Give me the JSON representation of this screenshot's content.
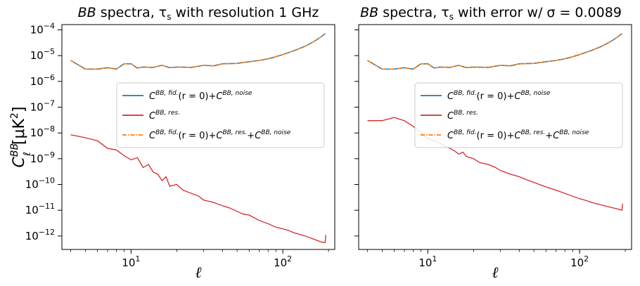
{
  "chart_data": [
    {
      "type": "line",
      "title": "BB spectra, τ_s with resolution 1 GHz",
      "title_parts": {
        "italic": "BB",
        "rest": " spectra, τ",
        "sub": "s",
        "tail": " with resolution 1 GHz"
      },
      "xlabel": "ℓ",
      "ylabel": "C_ℓ^BB [μK²]",
      "xscale": "log",
      "yscale": "log",
      "xlim": [
        3.5,
        220
      ],
      "ylim": [
        3e-13,
        0.00016
      ],
      "x_ticks": [
        {
          "value": 10,
          "base": "10",
          "exp": "1"
        },
        {
          "value": 100,
          "base": "10",
          "exp": "2"
        }
      ],
      "y_ticks": [
        {
          "value": 0.0001,
          "base": "10",
          "exp": "−4"
        },
        {
          "value": 1e-05,
          "base": "10",
          "exp": "−5"
        },
        {
          "value": 1e-06,
          "base": "10",
          "exp": "−6"
        },
        {
          "value": 1e-07,
          "base": "10",
          "exp": "−7"
        },
        {
          "value": 1e-08,
          "base": "10",
          "exp": "−8"
        },
        {
          "value": 1e-09,
          "base": "10",
          "exp": "−9"
        },
        {
          "value": 1e-10,
          "base": "10",
          "exp": "−10"
        },
        {
          "value": 1e-11,
          "base": "10",
          "exp": "−11"
        },
        {
          "value": 1e-12,
          "base": "10",
          "exp": "−12"
        }
      ],
      "legend_position": "center-right",
      "series": [
        {
          "name": "C_ℓ^{BB, fid.}(r=0)+C_ℓ^{BB, noise}",
          "color": "#1f77b4",
          "style": "solid",
          "x": [
            4,
            5,
            6,
            7,
            8,
            9,
            10,
            11,
            12,
            14,
            16,
            18,
            20,
            25,
            30,
            35,
            40,
            50,
            60,
            70,
            80,
            90,
            100,
            120,
            140,
            160,
            180,
            190
          ],
          "y": [
            6.5e-06,
            3e-06,
            3e-06,
            3.4e-06,
            3e-06,
            4.8e-06,
            4.8e-06,
            3.3e-06,
            3.6e-06,
            3.5e-06,
            4.2e-06,
            3.4e-06,
            3.6e-06,
            3.5e-06,
            4.2e-06,
            4e-06,
            4.8e-06,
            5e-06,
            5.8e-06,
            6.5e-06,
            7.5e-06,
            9e-06,
            1.1e-05,
            1.6e-05,
            2.3e-05,
            3.5e-05,
            5.5e-05,
            7.2e-05
          ]
        },
        {
          "name": "C_ℓ^{BB, res.}",
          "color": "#d62728",
          "style": "solid",
          "x": [
            4,
            5,
            6,
            7,
            8,
            9,
            10,
            11,
            12,
            13,
            14,
            15,
            16,
            17,
            18,
            20,
            22,
            25,
            28,
            30,
            35,
            40,
            45,
            50,
            55,
            60,
            70,
            80,
            90,
            100,
            110,
            120,
            140,
            160,
            180,
            190,
            192
          ],
          "y": [
            8.5e-09,
            6.5e-09,
            5e-09,
            2.5e-09,
            2.2e-09,
            1.3e-09,
            9e-10,
            1.1e-09,
            4.5e-10,
            6e-10,
            3e-10,
            2.5e-10,
            1.4e-10,
            2e-10,
            8.5e-11,
            1e-10,
            6e-11,
            4.5e-11,
            3.5e-11,
            2.5e-11,
            2e-11,
            1.5e-11,
            1.2e-11,
            9e-12,
            7e-12,
            6.5e-12,
            4e-12,
            3e-12,
            2.2e-12,
            1.9e-12,
            1.6e-12,
            1.3e-12,
            1e-12,
            7.5e-13,
            5.8e-13,
            5.5e-13,
            1.1e-12
          ]
        },
        {
          "name": "C_ℓ^{BB, fid.}(r=0)+C_ℓ^{BB, res.}+C_ℓ^{BB, noise}",
          "color": "#ff7f0e",
          "style": "dashdot",
          "x": [
            4,
            5,
            6,
            7,
            8,
            9,
            10,
            11,
            12,
            14,
            16,
            18,
            20,
            25,
            30,
            35,
            40,
            50,
            60,
            70,
            80,
            90,
            100,
            120,
            140,
            160,
            180,
            190
          ],
          "y": [
            6.5e-06,
            3e-06,
            3e-06,
            3.4e-06,
            3e-06,
            4.8e-06,
            4.8e-06,
            3.3e-06,
            3.6e-06,
            3.5e-06,
            4.2e-06,
            3.4e-06,
            3.6e-06,
            3.5e-06,
            4.2e-06,
            4e-06,
            4.8e-06,
            5e-06,
            5.8e-06,
            6.5e-06,
            7.5e-06,
            9e-06,
            1.1e-05,
            1.6e-05,
            2.3e-05,
            3.5e-05,
            5.5e-05,
            7.2e-05
          ]
        }
      ]
    },
    {
      "type": "line",
      "title": "BB spectra, τ_s with error w/ σ = 0.0089",
      "title_parts": {
        "italic": "BB",
        "rest": " spectra, τ",
        "sub": "s",
        "tail": " with error w/ σ = 0.0089"
      },
      "xlabel": "ℓ",
      "ylabel": "",
      "xscale": "log",
      "yscale": "log",
      "xlim": [
        3.5,
        220
      ],
      "ylim": [
        3e-13,
        0.00016
      ],
      "x_ticks": [
        {
          "value": 10,
          "base": "10",
          "exp": "1"
        },
        {
          "value": 100,
          "base": "10",
          "exp": "2"
        }
      ],
      "y_ticks": [],
      "legend_position": "center-right",
      "series": [
        {
          "name": "C_ℓ^{BB, fid.}(r=0)+C_ℓ^{BB, noise}",
          "color": "#1f77b4",
          "style": "solid",
          "x": [
            4,
            5,
            6,
            7,
            8,
            9,
            10,
            11,
            12,
            14,
            16,
            18,
            20,
            25,
            30,
            35,
            40,
            50,
            60,
            70,
            80,
            90,
            100,
            120,
            140,
            160,
            180,
            190
          ],
          "y": [
            6.5e-06,
            3e-06,
            3e-06,
            3.4e-06,
            3e-06,
            4.8e-06,
            4.8e-06,
            3.3e-06,
            3.6e-06,
            3.5e-06,
            4.2e-06,
            3.4e-06,
            3.6e-06,
            3.5e-06,
            4.2e-06,
            4e-06,
            4.8e-06,
            5e-06,
            5.8e-06,
            6.5e-06,
            7.5e-06,
            9e-06,
            1.1e-05,
            1.6e-05,
            2.3e-05,
            3.5e-05,
            5.5e-05,
            7.2e-05
          ]
        },
        {
          "name": "C_ℓ^{BB, res.}",
          "color": "#d62728",
          "style": "solid",
          "x": [
            4,
            5,
            6,
            7,
            8,
            9,
            10,
            11,
            12,
            13,
            14,
            15,
            16,
            17,
            18,
            20,
            22,
            25,
            28,
            30,
            35,
            40,
            45,
            50,
            60,
            70,
            80,
            90,
            100,
            110,
            120,
            140,
            160,
            180,
            190,
            192
          ],
          "y": [
            3e-08,
            3e-08,
            4e-08,
            3e-08,
            1.8e-08,
            1e-08,
            6e-09,
            5e-09,
            4e-09,
            3e-09,
            2.5e-09,
            2e-09,
            1.5e-09,
            1.8e-09,
            1.2e-09,
            1e-09,
            7e-10,
            6e-10,
            4.5e-10,
            3.5e-10,
            2.5e-10,
            2e-10,
            1.5e-10,
            1.2e-10,
            8e-11,
            6e-11,
            4.5e-11,
            3.5e-11,
            2.8e-11,
            2.4e-11,
            2e-11,
            1.6e-11,
            1.3e-11,
            1.1e-11,
            1e-11,
            1.8e-11
          ]
        },
        {
          "name": "C_ℓ^{BB, fid.}(r=0)+C_ℓ^{BB, res.}+C_ℓ^{BB, noise}",
          "color": "#ff7f0e",
          "style": "dashdot",
          "x": [
            4,
            5,
            6,
            7,
            8,
            9,
            10,
            11,
            12,
            14,
            16,
            18,
            20,
            25,
            30,
            35,
            40,
            50,
            60,
            70,
            80,
            90,
            100,
            120,
            140,
            160,
            180,
            190
          ],
          "y": [
            6.5e-06,
            3e-06,
            3e-06,
            3.4e-06,
            3e-06,
            4.8e-06,
            4.8e-06,
            3.3e-06,
            3.6e-06,
            3.5e-06,
            4.2e-06,
            3.4e-06,
            3.6e-06,
            3.5e-06,
            4.2e-06,
            4e-06,
            4.8e-06,
            5e-06,
            5.8e-06,
            6.5e-06,
            7.5e-06,
            9e-06,
            1.1e-05,
            1.6e-05,
            2.3e-05,
            3.5e-05,
            5.5e-05,
            7.2e-05
          ]
        }
      ]
    }
  ],
  "legend_labels": {
    "fid_noise": {
      "C": "C",
      "l": "ℓ",
      "sup1": "BB, fid.",
      "mid": "(r = 0)+",
      "sup2": "BB, noise"
    },
    "res": {
      "C": "C",
      "l": "ℓ",
      "sup1": "BB, res."
    },
    "all": {
      "C": "C",
      "l": "ℓ",
      "sup1": "BB, fid.",
      "mid": "(r = 0)+",
      "sup2": "BB, res.",
      "plus": "+",
      "sup3": "BB, noise"
    }
  },
  "ylabel_parts": {
    "C": "C",
    "sup": "BB",
    "sub": "ℓ",
    "unit": "[μK",
    "unit_exp": "2",
    "close": "]"
  }
}
